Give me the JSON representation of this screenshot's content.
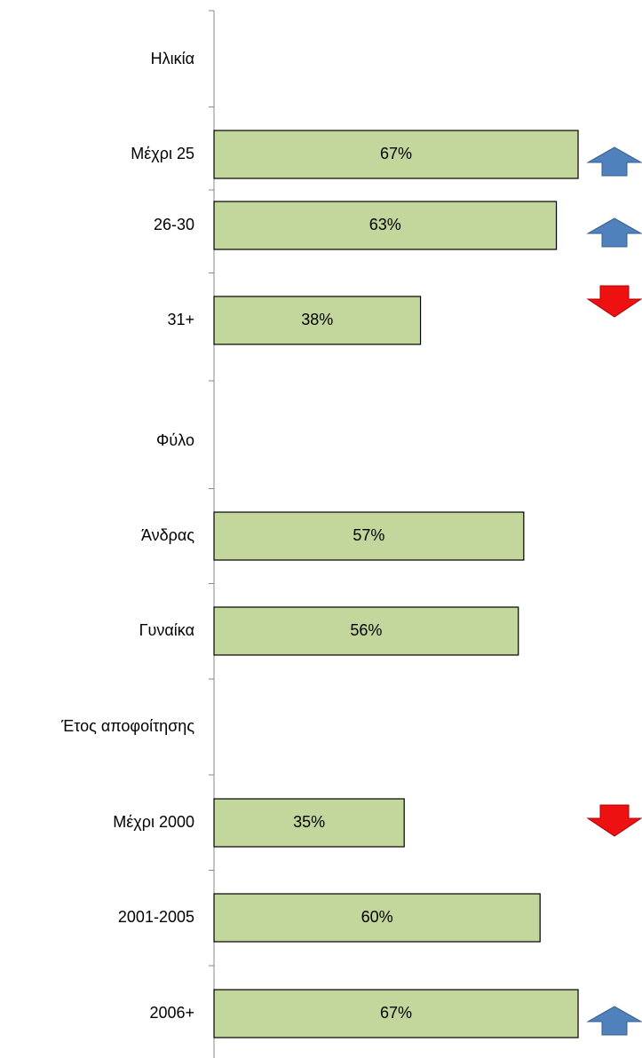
{
  "chart_data": {
    "type": "bar",
    "orientation": "horizontal",
    "categories": [
      "Ηλικία",
      "Μέχρι 25",
      "26-30",
      "31+",
      "Φύλο",
      "Άνδρας",
      "Γυναίκα",
      "Έτος αποφοίτησης",
      "Μέχρι 2000",
      "2001-2005",
      "2006+"
    ],
    "values": [
      null,
      67,
      63,
      38,
      null,
      57,
      56,
      null,
      35,
      60,
      67
    ],
    "value_labels": [
      null,
      "67%",
      "63%",
      "38%",
      null,
      "57%",
      "56%",
      null,
      "35%",
      "60%",
      "67%"
    ],
    "color": "#c3d69b"
  }
}
